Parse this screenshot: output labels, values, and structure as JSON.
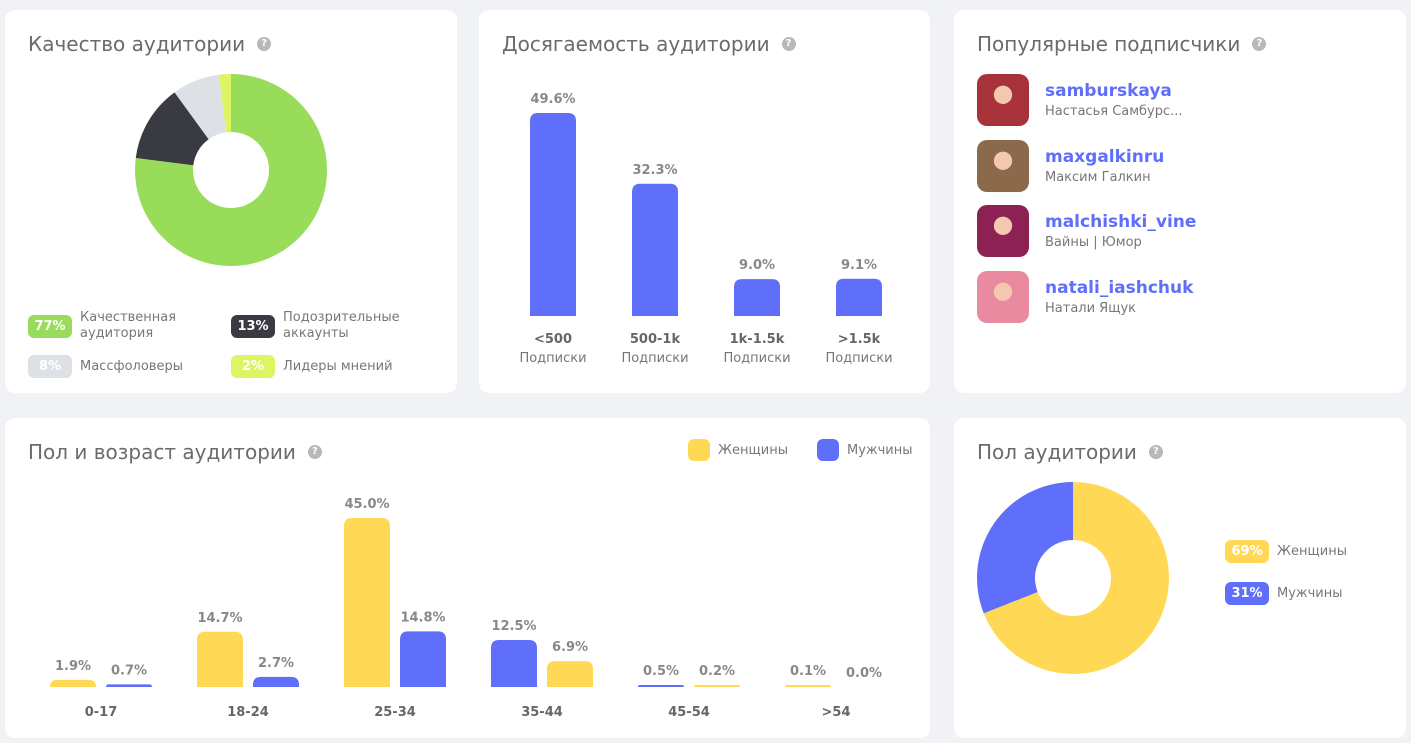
{
  "quality": {
    "title": "Качество аудитории",
    "help": "?",
    "segments": [
      {
        "label": "Качественная аудитория",
        "line1": "Качественная",
        "line2": "аудитория",
        "value": 77,
        "badge": "77%",
        "color": "#98dc5a"
      },
      {
        "label": "Подозрительные аккаунты",
        "line1": "Подозрительные",
        "line2": "аккаунты",
        "value": 13,
        "badge": "13%",
        "color": "#3a3b42"
      },
      {
        "label": "Массфоловеры",
        "line1": "Массфоловеры",
        "line2": "",
        "value": 8,
        "badge": "8%",
        "color": "#dde0e5"
      },
      {
        "label": "Лидеры мнений",
        "line1": "Лидеры мнений",
        "line2": "",
        "value": 2,
        "badge": "2%",
        "color": "#dcf562"
      }
    ]
  },
  "reach": {
    "title": "Досягаемость аудитории",
    "help": "?",
    "chart_data": {
      "type": "bar",
      "categories": [
        "<500",
        "500-1k",
        "1k-1.5k",
        ">1.5k"
      ],
      "sublabel": "Подписки",
      "values": [
        49.6,
        32.3,
        9.0,
        9.1
      ],
      "labels": [
        "49.6%",
        "32.3%",
        "9.0%",
        "9.1%"
      ],
      "color": "#5f6ffa"
    }
  },
  "popular": {
    "title": "Популярные подписчики",
    "help": "?",
    "items": [
      {
        "username": "samburskaya",
        "name": "Настасья Самбурс...",
        "color": "#a8323a"
      },
      {
        "username": "maxgalkinru",
        "name": "Максим Галкин",
        "color": "#8a6a4a"
      },
      {
        "username": "malchishki_vine",
        "name": "Вайны | Юмор",
        "color": "#8e2153"
      },
      {
        "username": "natali_iashchuk",
        "name": "Натали Ящук",
        "color": "#e98aa0"
      }
    ]
  },
  "age_gender": {
    "title": "Пол и возраст аудитории",
    "help": "?",
    "legend": {
      "female": "Женщины",
      "male": "Мужчины"
    },
    "chart_data": {
      "type": "bar",
      "categories": [
        "0-17",
        "18-24",
        "25-34",
        "35-44",
        "45-54",
        ">54"
      ],
      "series": [
        {
          "name": "Женщины",
          "key": "female",
          "color": "#ffd955",
          "values": [
            1.9,
            14.7,
            45.0,
            6.9,
            0.2,
            0.1
          ]
        },
        {
          "name": "Мужчины",
          "key": "male",
          "color": "#5f6ffa",
          "values": [
            0.7,
            2.7,
            14.8,
            12.5,
            0.5,
            0.0
          ]
        }
      ],
      "labels": {
        "female": [
          "1.9%",
          "14.7%",
          "45.0%",
          "6.9%",
          "0.2%",
          "0.1%"
        ],
        "male": [
          "0.7%",
          "2.7%",
          "14.8%",
          "12.5%",
          "0.5%",
          "0.0%"
        ]
      },
      "ylim": [
        0,
        45
      ]
    }
  },
  "gender": {
    "title": "Пол аудитории",
    "help": "?",
    "chart_data": {
      "type": "pie",
      "slices": [
        {
          "label": "Женщины",
          "value": 69,
          "badge": "69%",
          "color": "#ffd955"
        },
        {
          "label": "Мужчины",
          "value": 31,
          "badge": "31%",
          "color": "#5f6ffa"
        }
      ]
    }
  }
}
